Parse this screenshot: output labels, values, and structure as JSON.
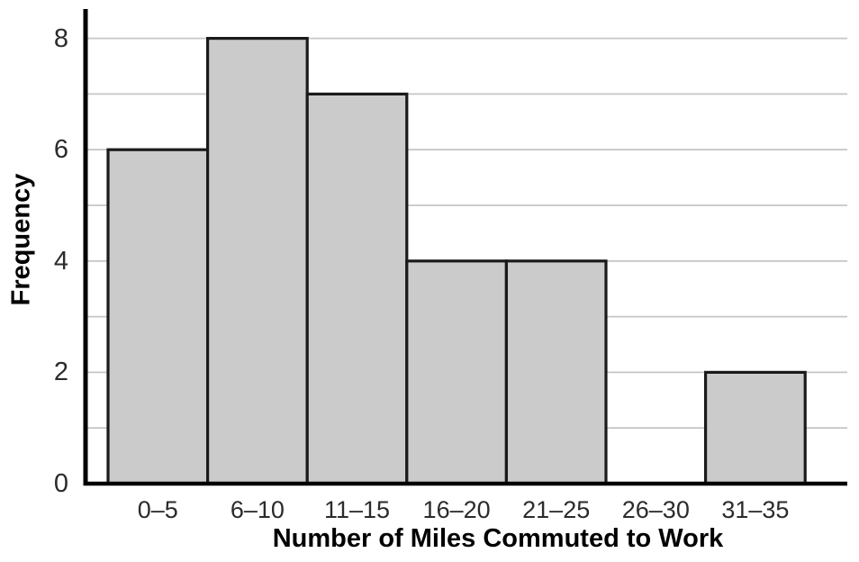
{
  "chart_data": {
    "type": "bar",
    "subtype": "histogram",
    "title": "",
    "categories": [
      "0–5",
      "6–10",
      "11–15",
      "16–20",
      "21–25",
      "26–30",
      "31–35"
    ],
    "values": [
      6,
      8,
      7,
      4,
      4,
      0,
      2
    ],
    "xlabel": "Number of Miles Commuted to Work",
    "ylabel": "Frequency",
    "ylim": [
      0,
      8
    ],
    "yticks": [
      0,
      2,
      4,
      6,
      8
    ],
    "gridlines": [
      1,
      2,
      3,
      4,
      5,
      6,
      7,
      8
    ],
    "grid": "horizontal-light",
    "legend": "none",
    "bars_touching": true,
    "colors": {
      "bar_fill": "#cbcbcb",
      "bar_border": "#1a1a1a",
      "gridline": "#c6c6c6",
      "axis": "#000000",
      "tick_text": "#2b2b2b",
      "title_text": "#000000",
      "background": "#ffffff"
    }
  }
}
